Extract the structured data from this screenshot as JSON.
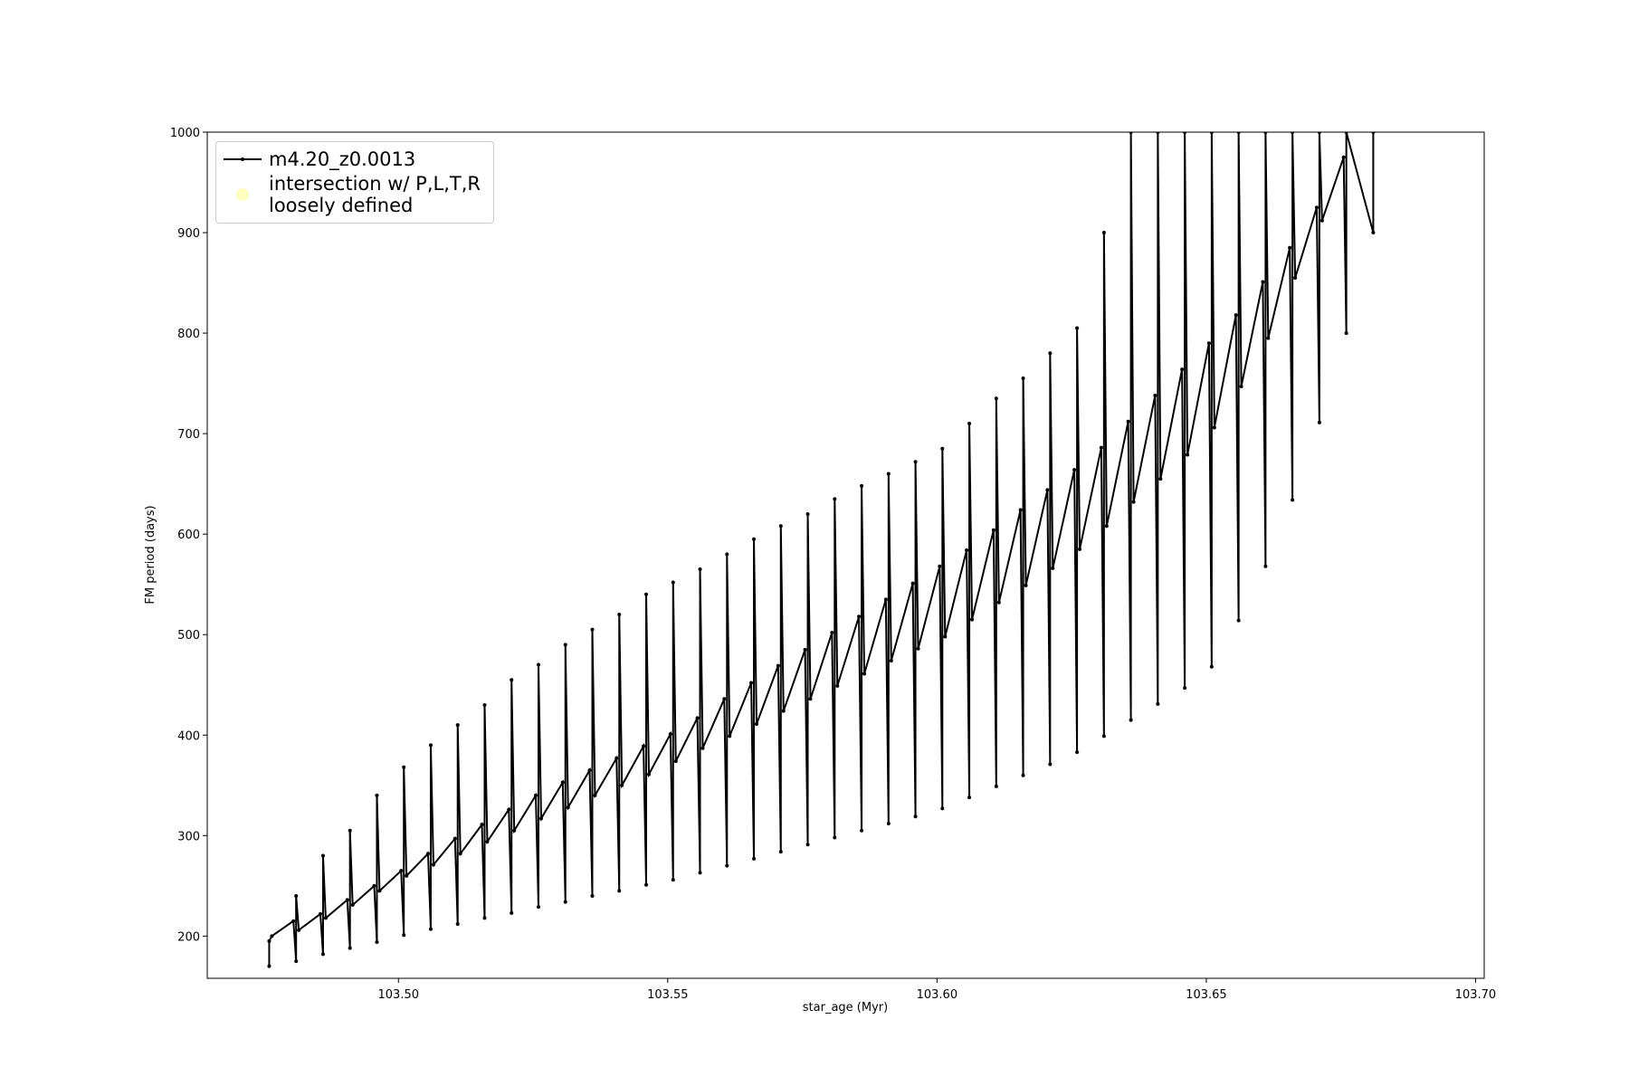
{
  "chart_data": {
    "type": "line",
    "xlabel": "star_age (Myr)",
    "ylabel": "FM period (days)",
    "xlim": [
      103.4645,
      103.7016
    ],
    "ylim": [
      158,
      1000
    ],
    "xticks": [
      {
        "value": 103.5,
        "label": "103.50"
      },
      {
        "value": 103.55,
        "label": "103.55"
      },
      {
        "value": 103.6,
        "label": "103.60"
      },
      {
        "value": 103.65,
        "label": "103.65"
      },
      {
        "value": 103.7,
        "label": "103.70"
      }
    ],
    "yticks": [
      200,
      300,
      400,
      500,
      600,
      700,
      800,
      900,
      1000
    ],
    "legend": "upper left",
    "series": [
      {
        "name": "m4.20_z0.0013",
        "color": "#000000",
        "x": [
          103.476,
          103.476,
          103.4765,
          103.4805,
          103.481,
          103.481,
          103.4815,
          103.4855,
          103.486,
          103.486,
          103.4865,
          103.4905,
          103.491,
          103.491,
          103.4915,
          103.4955,
          103.496,
          103.496,
          103.4965,
          103.5005,
          103.501,
          103.501,
          103.5015,
          103.5055,
          103.506,
          103.506,
          103.5065,
          103.5105,
          103.511,
          103.511,
          103.5115,
          103.5155,
          103.516,
          103.516,
          103.5165,
          103.5205,
          103.521,
          103.521,
          103.5215,
          103.5255,
          103.526,
          103.526,
          103.5265,
          103.5305,
          103.531,
          103.531,
          103.5315,
          103.5355,
          103.536,
          103.536,
          103.5365,
          103.5405,
          103.541,
          103.541,
          103.5415,
          103.5455,
          103.546,
          103.546,
          103.5465,
          103.5505,
          103.551,
          103.551,
          103.5515,
          103.5555,
          103.556,
          103.556,
          103.5565,
          103.5605,
          103.561,
          103.561,
          103.5615,
          103.5655,
          103.566,
          103.566,
          103.5665,
          103.5705,
          103.571,
          103.571,
          103.5715,
          103.5755,
          103.576,
          103.576,
          103.5765,
          103.5805,
          103.581,
          103.581,
          103.5815,
          103.5855,
          103.586,
          103.586,
          103.5865,
          103.5905,
          103.591,
          103.591,
          103.5915,
          103.5955,
          103.596,
          103.596,
          103.5965,
          103.6005,
          103.601,
          103.601,
          103.6015,
          103.6055,
          103.606,
          103.606,
          103.6065,
          103.6105,
          103.611,
          103.611,
          103.6115,
          103.6155,
          103.616,
          103.616,
          103.6165,
          103.6205,
          103.621,
          103.621,
          103.6215,
          103.6255,
          103.626,
          103.626,
          103.6265,
          103.6305,
          103.631,
          103.631,
          103.6315,
          103.6355,
          103.636,
          103.636,
          103.6365,
          103.6405,
          103.641,
          103.641,
          103.6415,
          103.6455,
          103.646,
          103.646,
          103.6465,
          103.6505,
          103.651,
          103.651,
          103.6515,
          103.6555,
          103.656,
          103.656,
          103.6565,
          103.6605,
          103.661,
          103.661,
          103.6615,
          103.6655,
          103.666,
          103.666,
          103.6665,
          103.6705,
          103.671,
          103.671,
          103.6715,
          103.6755,
          103.676,
          103.676,
          103.681,
          103.681
        ],
        "values": [
          170,
          195,
          200,
          215,
          175,
          240,
          206,
          222,
          182,
          280,
          218,
          236,
          188,
          305,
          231,
          250,
          194,
          340,
          245,
          265,
          201,
          368,
          260,
          282,
          207,
          390,
          271,
          297,
          212,
          410,
          282,
          311,
          218,
          430,
          294,
          326,
          223,
          455,
          305,
          340,
          229,
          470,
          317,
          353,
          234,
          490,
          328,
          365,
          240,
          505,
          340,
          377,
          245,
          520,
          350,
          389,
          251,
          540,
          361,
          401,
          256,
          552,
          374,
          417,
          263,
          565,
          387,
          436,
          270,
          580,
          399,
          452,
          277,
          595,
          411,
          469,
          284,
          608,
          424,
          485,
          291,
          620,
          436,
          502,
          298,
          635,
          449,
          518,
          305,
          648,
          461,
          535,
          312,
          660,
          474,
          551,
          319,
          672,
          486,
          568,
          327,
          685,
          498,
          584,
          338,
          710,
          515,
          604,
          349,
          735,
          532,
          624,
          360,
          755,
          549,
          644,
          371,
          780,
          566,
          664,
          383,
          805,
          585,
          686,
          399,
          900,
          608,
          712,
          415,
          1000,
          632,
          738,
          431,
          1000,
          655,
          764,
          447,
          1000,
          679,
          790,
          468,
          1000,
          706,
          818,
          514,
          1000,
          747,
          851,
          568,
          1000,
          795,
          885,
          634,
          1000,
          855,
          925,
          711,
          1000,
          912,
          975,
          800,
          1000,
          900,
          1000
        ]
      },
      {
        "name": "intersection w/ P,L,T,R\nloosely defined",
        "color": "#ffffc0",
        "x": [],
        "values": []
      }
    ]
  }
}
